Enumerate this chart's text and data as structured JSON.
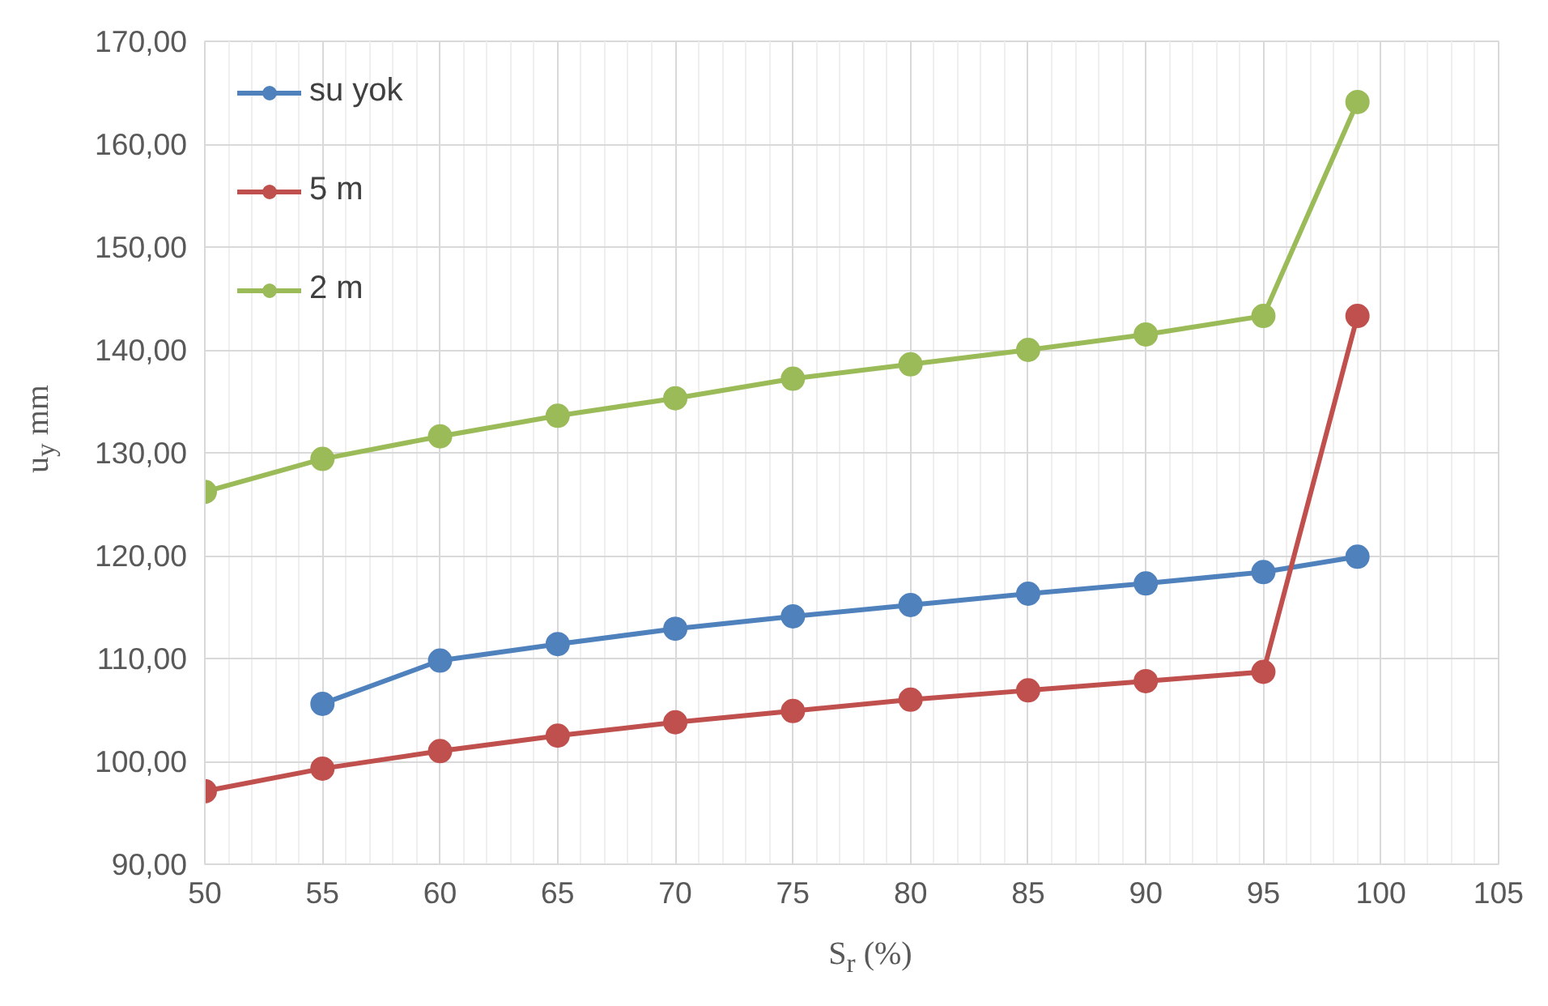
{
  "chart_data": {
    "type": "line",
    "xlabel": "S$_{r}$ (%)",
    "ylabel": "u$_{y}$ mm",
    "xlim": [
      50,
      105
    ],
    "xticks": [
      50,
      55,
      60,
      65,
      70,
      75,
      80,
      85,
      90,
      95,
      100,
      105
    ],
    "ylim": [
      90,
      170
    ],
    "yticks": [
      {
        "value": 90,
        "label": "90,00"
      },
      {
        "value": 100,
        "label": "100,00"
      },
      {
        "value": 110,
        "label": "110,00"
      },
      {
        "value": 120,
        "label": "120,00"
      },
      {
        "value": 130,
        "label": "130,00"
      },
      {
        "value": 140,
        "label": "140,00"
      },
      {
        "value": 150,
        "label": "150,00"
      },
      {
        "value": 160,
        "label": "160,00"
      },
      {
        "value": 170,
        "label": "170,00"
      }
    ],
    "grid": true,
    "legend": "top left",
    "marker": "circle",
    "line_style": "solid",
    "series": [
      {
        "name": "su yok",
        "color": "#4f81bd",
        "x": [
          55,
          60,
          65,
          70,
          75,
          80,
          85,
          90,
          95,
          99
        ],
        "values": [
          105.6,
          109.8,
          111.4,
          112.9,
          114.1,
          115.2,
          116.3,
          117.3,
          118.4,
          119.9
        ]
      },
      {
        "name": "5 m",
        "color": "#c0504d",
        "x": [
          50,
          55,
          60,
          65,
          70,
          75,
          80,
          85,
          90,
          95,
          99
        ],
        "values": [
          97.1,
          99.3,
          101.0,
          102.5,
          103.8,
          104.9,
          106.0,
          106.9,
          107.8,
          108.7,
          143.3
        ]
      },
      {
        "name": "2 m",
        "color": "#9bbb59",
        "x": [
          50,
          55,
          60,
          65,
          70,
          75,
          80,
          85,
          90,
          95,
          99
        ],
        "values": [
          126.2,
          129.4,
          131.6,
          133.6,
          135.3,
          137.2,
          138.6,
          140.0,
          141.5,
          143.3,
          164.1
        ]
      }
    ]
  }
}
